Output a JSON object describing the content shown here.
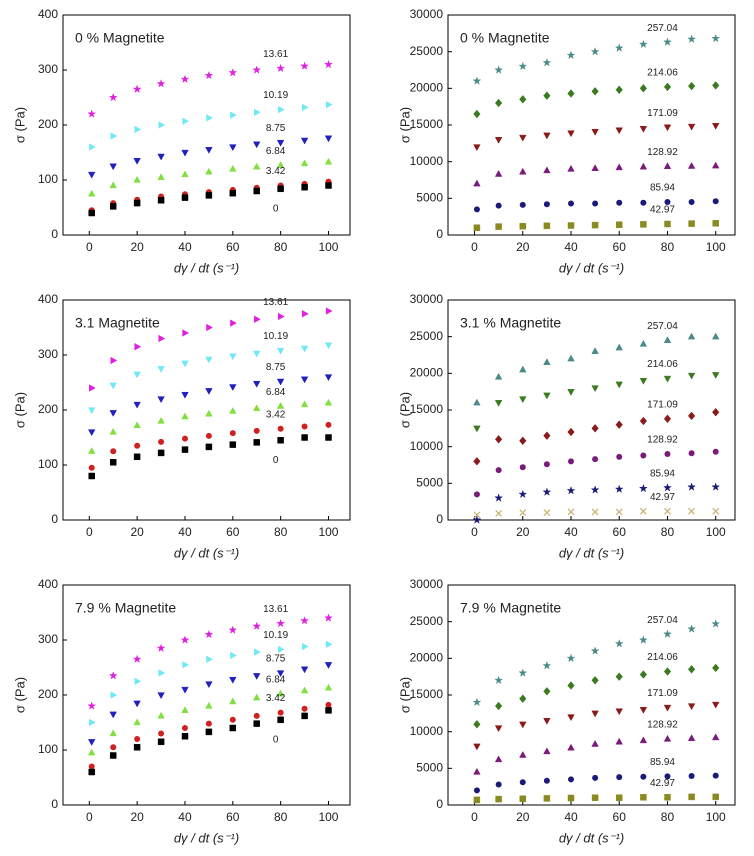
{
  "chart_data": [
    {
      "type": "scatter",
      "title": "0 % Magnetite",
      "xlabel": "dγ / dt (s⁻¹)",
      "ylabel": "σ (Pa)",
      "x": [
        1,
        10,
        20,
        30,
        40,
        50,
        60,
        70,
        80,
        90,
        100
      ],
      "xlim": [
        -11,
        109
      ],
      "xticks": [
        0,
        20,
        40,
        60,
        80,
        100
      ],
      "ylim": [
        0,
        400
      ],
      "yticks": [
        0,
        100,
        200,
        300,
        400
      ],
      "series": [
        {
          "name": "13.61",
          "color": "#e020e0",
          "marker": "star",
          "values": [
            220,
            250,
            265,
            275,
            283,
            290,
            295,
            300,
            303,
            307,
            310
          ]
        },
        {
          "name": "10.19",
          "color": "#70e8f8",
          "marker": "triangle-right",
          "values": [
            160,
            180,
            192,
            200,
            207,
            213,
            218,
            223,
            228,
            232,
            237
          ]
        },
        {
          "name": "8.75",
          "color": "#2020c0",
          "marker": "triangle-down",
          "values": [
            110,
            125,
            135,
            143,
            150,
            155,
            160,
            165,
            168,
            172,
            176
          ]
        },
        {
          "name": "6.84",
          "color": "#80e040",
          "marker": "triangle-up",
          "values": [
            75,
            90,
            100,
            105,
            110,
            115,
            120,
            124,
            127,
            130,
            133
          ]
        },
        {
          "name": "3.42",
          "color": "#d02020",
          "marker": "circle",
          "values": [
            45,
            58,
            64,
            70,
            74,
            78,
            82,
            86,
            90,
            93,
            97
          ]
        },
        {
          "name": "0",
          "color": "#000000",
          "marker": "square",
          "values": [
            40,
            52,
            58,
            63,
            68,
            72,
            76,
            80,
            84,
            87,
            90
          ]
        }
      ]
    },
    {
      "type": "scatter",
      "title": "0 % Magnetite",
      "xlabel": "dγ / dt (s⁻¹)",
      "ylabel": "σ (Pa)",
      "x": [
        1,
        10,
        20,
        30,
        40,
        50,
        60,
        70,
        80,
        90,
        100
      ],
      "xlim": [
        -11,
        108
      ],
      "xticks": [
        0,
        20,
        40,
        60,
        80,
        100
      ],
      "ylim": [
        0,
        30000
      ],
      "yticks": [
        0,
        5000,
        10000,
        15000,
        20000,
        25000,
        30000
      ],
      "series": [
        {
          "name": "257.04",
          "color": "#4a8a8a",
          "marker": "star",
          "values": [
            21000,
            22500,
            23000,
            23500,
            24500,
            25000,
            25500,
            26000,
            26300,
            26700,
            26800
          ]
        },
        {
          "name": "214.06",
          "color": "#3a7a20",
          "marker": "diamond",
          "values": [
            16500,
            18000,
            18500,
            19000,
            19300,
            19600,
            19800,
            20000,
            20200,
            20300,
            20400
          ]
        },
        {
          "name": "171.09",
          "color": "#8b1a1a",
          "marker": "triangle-down",
          "values": [
            12000,
            13000,
            13300,
            13600,
            13900,
            14100,
            14300,
            14500,
            14700,
            14800,
            14900
          ]
        },
        {
          "name": "128.92",
          "color": "#7a1a7a",
          "marker": "triangle-up",
          "values": [
            7000,
            8300,
            8600,
            8800,
            9000,
            9100,
            9200,
            9300,
            9350,
            9400,
            9450
          ]
        },
        {
          "name": "85.94",
          "color": "#1a1a7a",
          "marker": "circle",
          "values": [
            3500,
            4000,
            4100,
            4200,
            4300,
            4300,
            4400,
            4400,
            4500,
            4500,
            4600
          ]
        },
        {
          "name": "42.97",
          "color": "#8a8a20",
          "marker": "square",
          "values": [
            1000,
            1150,
            1200,
            1250,
            1300,
            1350,
            1400,
            1450,
            1500,
            1550,
            1600
          ]
        }
      ]
    },
    {
      "type": "scatter",
      "title": "3.1 Magnetite",
      "xlabel": "dγ / dt (s⁻¹)",
      "ylabel": "σ (Pa)",
      "x": [
        1,
        10,
        20,
        30,
        40,
        50,
        60,
        70,
        80,
        90,
        100
      ],
      "xlim": [
        -11,
        109
      ],
      "xticks": [
        0,
        20,
        40,
        60,
        80,
        100
      ],
      "ylim": [
        0,
        400
      ],
      "yticks": [
        0,
        100,
        200,
        300,
        400
      ],
      "series": [
        {
          "name": "13.61",
          "color": "#e020e0",
          "marker": "triangle-right",
          "values": [
            240,
            290,
            315,
            330,
            340,
            350,
            358,
            365,
            370,
            375,
            380
          ]
        },
        {
          "name": "10.19",
          "color": "#70e8f8",
          "marker": "triangle-down",
          "values": [
            200,
            245,
            265,
            275,
            285,
            292,
            298,
            303,
            308,
            312,
            318
          ]
        },
        {
          "name": "8.75",
          "color": "#2020c0",
          "marker": "triangle-down",
          "values": [
            160,
            195,
            210,
            220,
            228,
            235,
            242,
            248,
            252,
            256,
            260
          ]
        },
        {
          "name": "6.84",
          "color": "#80e040",
          "marker": "triangle-up",
          "values": [
            125,
            160,
            172,
            180,
            188,
            193,
            198,
            203,
            207,
            210,
            213
          ]
        },
        {
          "name": "3.42",
          "color": "#d02020",
          "marker": "circle",
          "values": [
            95,
            125,
            135,
            142,
            148,
            153,
            158,
            162,
            166,
            170,
            173
          ]
        },
        {
          "name": "0",
          "color": "#000000",
          "marker": "square",
          "values": [
            80,
            105,
            115,
            122,
            128,
            133,
            137,
            141,
            145,
            150,
            150
          ]
        }
      ]
    },
    {
      "type": "scatter",
      "title": "3.1 % Magnetite",
      "xlabel": "dγ / dt (s⁻¹)",
      "ylabel": "σ (Pa)",
      "x": [
        1,
        10,
        20,
        30,
        40,
        50,
        60,
        70,
        80,
        90,
        100
      ],
      "xlim": [
        -11,
        108
      ],
      "xticks": [
        0,
        20,
        40,
        60,
        80,
        100
      ],
      "ylim": [
        0,
        30000
      ],
      "yticks": [
        0,
        5000,
        10000,
        15000,
        20000,
        25000,
        30000
      ],
      "series": [
        {
          "name": "257.04",
          "color": "#4a8a8a",
          "marker": "triangle-up",
          "values": [
            16000,
            19500,
            20500,
            21500,
            22000,
            23000,
            23500,
            24000,
            24500,
            25000,
            25000
          ]
        },
        {
          "name": "214.06",
          "color": "#3a7a20",
          "marker": "triangle-down",
          "values": [
            12500,
            16000,
            16500,
            17000,
            17500,
            18000,
            18500,
            19000,
            19300,
            19700,
            19800
          ]
        },
        {
          "name": "171.09",
          "color": "#8b1a1a",
          "marker": "diamond",
          "values": [
            8000,
            11000,
            10800,
            11500,
            12000,
            12500,
            13000,
            13500,
            13800,
            14200,
            14700
          ]
        },
        {
          "name": "128.92",
          "color": "#7a1a7a",
          "marker": "circle",
          "values": [
            3500,
            6800,
            7200,
            7600,
            8000,
            8300,
            8600,
            8800,
            9000,
            9100,
            9300
          ]
        },
        {
          "name": "85.94",
          "color": "#1a1a7a",
          "marker": "star",
          "values": [
            0,
            3000,
            3500,
            3800,
            4000,
            4100,
            4200,
            4300,
            4400,
            4500,
            4500
          ]
        },
        {
          "name": "42.97",
          "color": "#c8b070",
          "marker": "cross",
          "values": [
            700,
            900,
            1000,
            1000,
            1100,
            1100,
            1100,
            1200,
            1200,
            1200,
            1200
          ]
        }
      ]
    },
    {
      "type": "scatter",
      "title": "7.9 % Magnetite",
      "xlabel": "dγ / dt (s⁻¹)",
      "ylabel": "σ (Pa)",
      "x": [
        1,
        10,
        20,
        30,
        40,
        50,
        60,
        70,
        80,
        90,
        100
      ],
      "xlim": [
        -11,
        109
      ],
      "xticks": [
        0,
        20,
        40,
        60,
        80,
        100
      ],
      "ylim": [
        0,
        400
      ],
      "yticks": [
        0,
        100,
        200,
        300,
        400
      ],
      "series": [
        {
          "name": "13.61",
          "color": "#e020e0",
          "marker": "star",
          "values": [
            180,
            235,
            265,
            285,
            300,
            310,
            318,
            325,
            330,
            335,
            340
          ]
        },
        {
          "name": "10.19",
          "color": "#70e8f8",
          "marker": "triangle-right",
          "values": [
            150,
            200,
            225,
            240,
            255,
            265,
            272,
            278,
            283,
            288,
            292
          ]
        },
        {
          "name": "8.75",
          "color": "#2020c0",
          "marker": "triangle-down",
          "values": [
            115,
            165,
            185,
            200,
            210,
            220,
            228,
            235,
            240,
            247,
            255
          ]
        },
        {
          "name": "6.84",
          "color": "#80e040",
          "marker": "triangle-up",
          "values": [
            95,
            130,
            150,
            162,
            172,
            180,
            188,
            195,
            202,
            208,
            213
          ]
        },
        {
          "name": "3.42",
          "color": "#d02020",
          "marker": "circle",
          "values": [
            70,
            105,
            120,
            130,
            140,
            148,
            155,
            162,
            168,
            175,
            182
          ]
        },
        {
          "name": "0",
          "color": "#000000",
          "marker": "square",
          "values": [
            60,
            90,
            105,
            115,
            125,
            133,
            140,
            148,
            155,
            162,
            172
          ]
        }
      ]
    },
    {
      "type": "scatter",
      "title": "7.9 % Magnetite",
      "xlabel": "dγ / dt (s⁻¹)",
      "ylabel": "σ (Pa)",
      "x": [
        1,
        10,
        20,
        30,
        40,
        50,
        60,
        70,
        80,
        90,
        100
      ],
      "xlim": [
        -11,
        108
      ],
      "xticks": [
        0,
        20,
        40,
        60,
        80,
        100
      ],
      "ylim": [
        0,
        30000
      ],
      "yticks": [
        0,
        5000,
        10000,
        15000,
        20000,
        25000,
        30000
      ],
      "series": [
        {
          "name": "257.04",
          "color": "#4a8a8a",
          "marker": "star",
          "values": [
            14000,
            17000,
            18000,
            19000,
            20000,
            21000,
            22000,
            22500,
            23300,
            24000,
            24700
          ]
        },
        {
          "name": "214.06",
          "color": "#3a7a20",
          "marker": "diamond",
          "values": [
            11000,
            13500,
            14500,
            15500,
            16300,
            17000,
            17500,
            17800,
            18200,
            18500,
            18700
          ]
        },
        {
          "name": "171.09",
          "color": "#8b1a1a",
          "marker": "triangle-down",
          "values": [
            8000,
            10500,
            11000,
            11500,
            12000,
            12500,
            12800,
            13000,
            13300,
            13500,
            13700
          ]
        },
        {
          "name": "128.92",
          "color": "#7a1a7a",
          "marker": "triangle-up",
          "values": [
            4500,
            6200,
            6800,
            7300,
            7800,
            8300,
            8600,
            8800,
            9000,
            9100,
            9200
          ]
        },
        {
          "name": "85.94",
          "color": "#1a1a7a",
          "marker": "circle",
          "values": [
            2000,
            2800,
            3100,
            3300,
            3500,
            3700,
            3800,
            3850,
            3900,
            3950,
            4000
          ]
        },
        {
          "name": "42.97",
          "color": "#8a8a20",
          "marker": "square",
          "values": [
            700,
            800,
            850,
            900,
            950,
            1000,
            1000,
            1050,
            1050,
            1100,
            1100
          ]
        }
      ]
    }
  ]
}
